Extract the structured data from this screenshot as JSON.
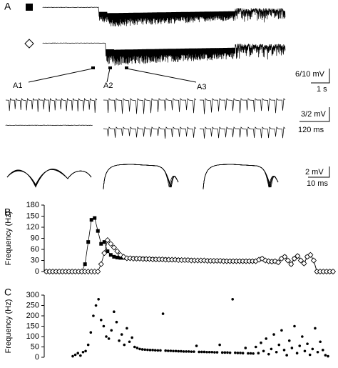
{
  "panel_a": {
    "label": "A",
    "insets": [
      "A1",
      "A2",
      "A3"
    ],
    "scale_bars": [
      "6/10 mV",
      "1 s",
      "3/2 mV",
      "120 ms",
      "2 mV",
      "10 ms"
    ]
  },
  "chart_data": [
    {
      "type": "line",
      "panel": "B",
      "y_label": "Frequency (Hz)",
      "ylim": [
        0,
        180
      ],
      "yticks": [
        0,
        30,
        60,
        90,
        120,
        150,
        180
      ],
      "series": [
        {
          "marker": "square",
          "color": "#000000",
          "values": [
            0,
            0,
            0,
            0,
            0,
            0,
            0,
            0,
            0,
            0,
            0,
            0,
            20,
            80,
            140,
            145,
            110,
            75,
            80,
            55,
            45,
            40,
            38,
            37,
            37,
            36,
            36,
            36,
            35,
            35,
            35,
            34,
            34,
            34,
            33,
            33,
            33,
            33,
            32,
            32,
            32,
            32,
            31,
            31,
            31,
            31,
            30,
            30,
            30,
            30,
            30,
            29,
            29,
            29,
            29,
            29,
            28,
            28,
            28,
            28,
            28,
            28,
            28,
            28,
            28,
            28,
            32,
            35,
            30,
            28,
            27,
            28,
            25,
            35,
            40,
            30,
            20,
            35,
            42,
            30,
            22,
            40,
            45,
            30,
            0,
            0,
            0,
            0,
            0,
            0
          ]
        },
        {
          "marker": "diamond",
          "color": "#000000",
          "values": [
            0,
            0,
            0,
            0,
            0,
            0,
            0,
            0,
            0,
            0,
            0,
            0,
            0,
            0,
            0,
            0,
            0,
            20,
            50,
            85,
            75,
            65,
            55,
            45,
            40,
            36,
            36,
            35,
            35,
            35,
            34,
            34,
            34,
            33,
            33,
            33,
            33,
            32,
            32,
            32,
            32,
            31,
            31,
            31,
            31,
            30,
            30,
            30,
            30,
            30,
            29,
            29,
            29,
            29,
            29,
            28,
            28,
            28,
            28,
            28,
            28,
            28,
            28,
            28,
            28,
            28,
            32,
            35,
            30,
            28,
            27,
            28,
            25,
            35,
            40,
            30,
            20,
            35,
            42,
            30,
            22,
            40,
            45,
            30,
            0,
            0,
            0,
            0,
            0,
            0
          ]
        }
      ]
    },
    {
      "type": "scatter",
      "panel": "C",
      "y_label": "Frequency (Hz)",
      "ylim": [
        0,
        300
      ],
      "yticks": [
        0,
        50,
        100,
        150,
        200,
        250,
        300
      ],
      "color": "#000000",
      "values": [
        5,
        12,
        20,
        8,
        25,
        30,
        60,
        120,
        200,
        250,
        280,
        180,
        150,
        100,
        90,
        130,
        220,
        170,
        80,
        110,
        60,
        140,
        75,
        95,
        50,
        45,
        40,
        38,
        37,
        36,
        35,
        35,
        34,
        33,
        33,
        210,
        32,
        31,
        31,
        30,
        30,
        29,
        29,
        28,
        28,
        28,
        27,
        27,
        55,
        26,
        26,
        26,
        25,
        25,
        25,
        24,
        24,
        60,
        23,
        23,
        23,
        22,
        280,
        22,
        21,
        21,
        20,
        45,
        19,
        19,
        18,
        50,
        20,
        70,
        30,
        90,
        15,
        40,
        110,
        25,
        60,
        130,
        35,
        10,
        80,
        45,
        150,
        20,
        55,
        100,
        30,
        65,
        12,
        40,
        140,
        25,
        75,
        35,
        10,
        5
      ]
    }
  ]
}
